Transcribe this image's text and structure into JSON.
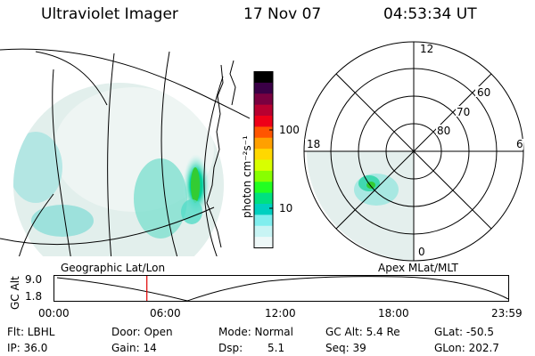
{
  "header": {
    "title": "Ultraviolet Imager",
    "date": "17 Nov 07",
    "time": "04:53:34 UT"
  },
  "geo_panel": {
    "label": "Geographic Lat/Lon"
  },
  "colorbar": {
    "unit_label": "photon cm⁻²s⁻¹",
    "ticks": [
      "100",
      "10"
    ],
    "colors": [
      "#000000",
      "#3a0046",
      "#7a0040",
      "#b80030",
      "#ee0018",
      "#ff5500",
      "#ffa000",
      "#ffd800",
      "#d8ff00",
      "#88ff00",
      "#22ff22",
      "#00e080",
      "#00d0c0",
      "#80eeee",
      "#c8f4f4",
      "#eef8f8"
    ]
  },
  "polar_panel": {
    "label": "Apex  MLat/MLT",
    "mlt_labels": [
      "12",
      "18",
      "6",
      "0"
    ],
    "mlat_labels": [
      "60",
      "70",
      "80"
    ]
  },
  "altitude_plot": {
    "ylabel": "GC Alt",
    "yticks": [
      "9.0",
      "1.8"
    ],
    "xticks": [
      "00:00",
      "06:00",
      "12:00",
      "18:00",
      "23:59"
    ],
    "current_time_hours": 4.89,
    "marker_color": "#e00000"
  },
  "info": {
    "filter": "Flt: LBHL",
    "door": "Door: Open",
    "mode": "Mode: Normal",
    "gc_alt": "GC Alt: 5.4 Re",
    "glat": "GLat: -50.5",
    "ip": "IP: 36.0",
    "gain": "Gain: 14",
    "dsp_label": "Dsp:",
    "dsp_value": "5.1",
    "seq": "Seq: 39",
    "glon": "GLon: 202.7"
  }
}
